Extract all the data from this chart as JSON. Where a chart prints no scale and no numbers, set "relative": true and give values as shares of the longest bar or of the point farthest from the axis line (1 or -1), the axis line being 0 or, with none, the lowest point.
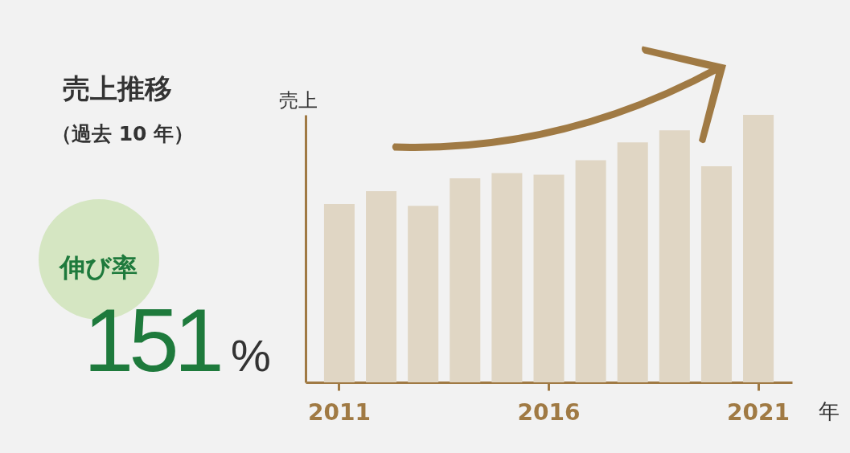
{
  "chart_data": {
    "type": "bar",
    "title": "売上推移",
    "subtitle": "（過去 10 年）",
    "ylabel": "売上",
    "xlabel": "年",
    "categories": [
      "2011",
      null,
      null,
      null,
      null,
      "2016",
      null,
      null,
      null,
      null,
      "2021"
    ],
    "values": [
      0.667,
      0.715,
      0.66,
      0.763,
      0.782,
      0.776,
      0.83,
      0.897,
      0.942,
      0.808,
      1
    ],
    "relative": true,
    "color": "#e0d6c4",
    "annotations": [
      "伸び率",
      "151%"
    ]
  }
}
